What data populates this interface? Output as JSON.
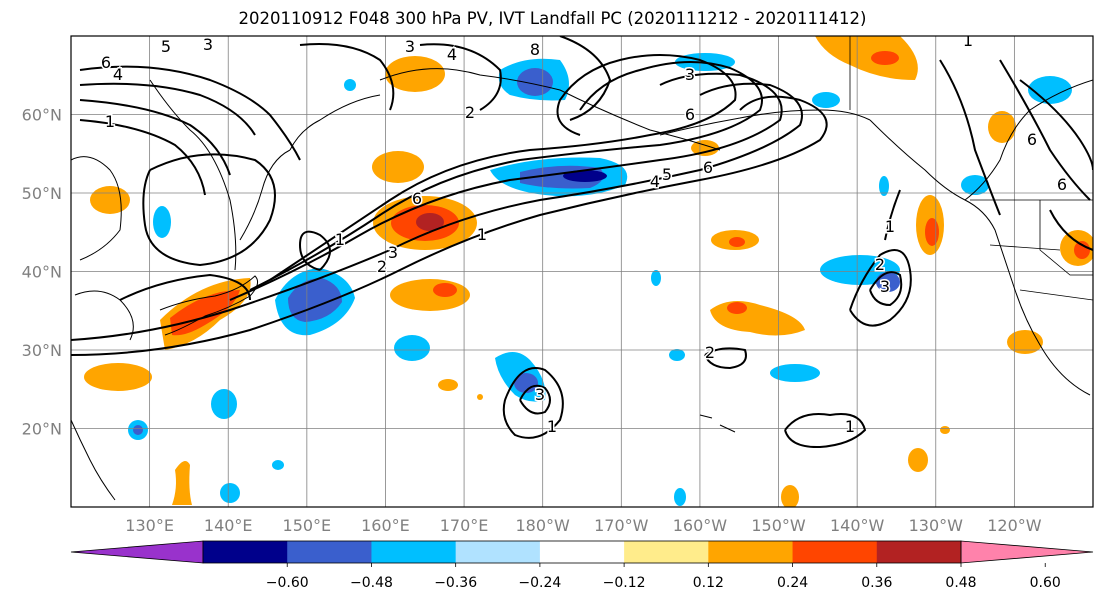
{
  "title": "2020110912 F048 300 hPa PV, IVT Landfall PC (2020111212 - 2020111412)",
  "axes": {
    "lat_labels": [
      "20°N",
      "30°N",
      "40°N",
      "50°N",
      "60°N"
    ],
    "lon_labels": [
      "130°E",
      "140°E",
      "150°E",
      "160°E",
      "170°E",
      "180°W",
      "170°W",
      "160°W",
      "150°W",
      "140°W",
      "130°W",
      "120°W"
    ],
    "tick_color": "#808080",
    "grid": true
  },
  "colorbar": {
    "ticks": [
      "−0.60",
      "−0.48",
      "−0.36",
      "−0.24",
      "−0.12",
      "0.12",
      "0.24",
      "0.36",
      "0.48",
      "0.60"
    ],
    "colors": [
      "#9932cc",
      "#00008b",
      "#3a5fcd",
      "#00bfff",
      "#b0e2ff",
      "#ffffff",
      "#ffec8b",
      "#ffa500",
      "#ff4500",
      "#b22222",
      "#ff82ab"
    ],
    "extend": "both"
  },
  "contour_labels": [
    "6",
    "4",
    "1",
    "5",
    "3",
    "3",
    "4",
    "8",
    "3",
    "6",
    "2",
    "6",
    "4",
    "5",
    "6",
    "1",
    "2",
    "3",
    "1",
    "2",
    "3",
    "1",
    "3",
    "2",
    "1",
    "1",
    "6",
    "6",
    "1"
  ],
  "map": {
    "projection": "cylindrical",
    "extent": {
      "lon_min": 120,
      "lon_max": 250,
      "lat_min": 10,
      "lat_max": 70
    },
    "features": [
      "coastlines",
      "country-borders",
      "state-borders",
      "graticule"
    ]
  }
}
